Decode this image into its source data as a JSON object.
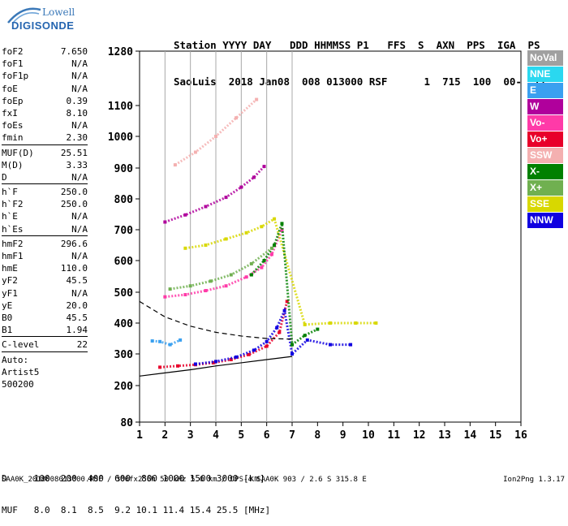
{
  "brand": {
    "line1": "Lowell",
    "line2": "DIGISONDE"
  },
  "header": {
    "line1": "Station YYYY DAY   DDD HHMMSS P1   FFS  S  AXN  PPS  IGA  PS",
    "line2": "SaoLuis  2018 Jan08  008 013000 RSF      1  715  100  00-  11"
  },
  "params": [
    {
      "label": "foF2",
      "value": "7.650"
    },
    {
      "label": "foF1",
      "value": "N/A"
    },
    {
      "label": "foF1p",
      "value": "N/A"
    },
    {
      "label": "foE",
      "value": "N/A"
    },
    {
      "label": "foEp",
      "value": "0.39"
    },
    {
      "label": "fxI",
      "value": "8.10"
    },
    {
      "label": "foEs",
      "value": "N/A"
    },
    {
      "label": "fmin",
      "value": "2.30"
    },
    {
      "sep": true
    },
    {
      "label": "MUF(D)",
      "value": "25.51"
    },
    {
      "label": "M(D)",
      "value": "3.33"
    },
    {
      "label": "D",
      "value": "N/A"
    },
    {
      "sep": true
    },
    {
      "label": "h`F",
      "value": "250.0"
    },
    {
      "label": "h`F2",
      "value": "250.0"
    },
    {
      "label": "h`E",
      "value": "N/A"
    },
    {
      "label": "h`Es",
      "value": "N/A"
    },
    {
      "sep": true
    },
    {
      "label": "hmF2",
      "value": "296.6"
    },
    {
      "label": "hmF1",
      "value": "N/A"
    },
    {
      "label": "hmE",
      "value": "110.0"
    },
    {
      "label": "yF2",
      "value": "45.5"
    },
    {
      "label": "yF1",
      "value": "N/A"
    },
    {
      "label": "yE",
      "value": "20.0"
    },
    {
      "label": "B0",
      "value": "45.5"
    },
    {
      "label": "B1",
      "value": "1.94"
    },
    {
      "sep": true
    },
    {
      "label": "C-level",
      "value": "22"
    },
    {
      "sep": true
    },
    {
      "label": "Auto:",
      "value": ""
    },
    {
      "label": "Artist5",
      "value": ""
    },
    {
      "label": "500200",
      "value": ""
    }
  ],
  "legend": [
    {
      "label": "NoVal",
      "color": "#a0a0a0"
    },
    {
      "label": "NNE",
      "color": "#2ad8f0"
    },
    {
      "label": "E",
      "color": "#3aa0f0"
    },
    {
      "label": "W",
      "color": "#b0009c"
    },
    {
      "label": "Vo-",
      "color": "#ff3aa8"
    },
    {
      "label": "Vo+",
      "color": "#e8002a"
    },
    {
      "label": "SSW",
      "color": "#f4b0b0"
    },
    {
      "label": "X-",
      "color": "#008000"
    },
    {
      "label": "X+",
      "color": "#70b050"
    },
    {
      "label": "SSE",
      "color": "#d8d800"
    },
    {
      "label": "NNW",
      "color": "#1000e0"
    }
  ],
  "chart_data": {
    "type": "scatter",
    "title": "",
    "xlabel": "",
    "ylabel": "",
    "xlim": [
      1,
      16
    ],
    "ylim": [
      80,
      1280
    ],
    "x_ticks": [
      1,
      2,
      3,
      4,
      5,
      6,
      7,
      8,
      9,
      10,
      11,
      12,
      13,
      14,
      15,
      16
    ],
    "y_ticks": [
      80,
      200,
      300,
      400,
      500,
      600,
      700,
      800,
      900,
      1000,
      1100,
      1280
    ],
    "grid_x_vertical": [
      2,
      3,
      4,
      5,
      6,
      7
    ],
    "series": [
      {
        "color": "#e8002a",
        "x": [
          1.8,
          2.5,
          3.2,
          3.9,
          4.6,
          5.3,
          6.0,
          6.5,
          6.8
        ],
        "y": [
          258,
          262,
          266,
          272,
          282,
          298,
          325,
          370,
          470
        ]
      },
      {
        "color": "#1000e0",
        "x": [
          3.2,
          4.0,
          4.8,
          5.5,
          6.0,
          6.4,
          6.7,
          7.0,
          7.6,
          8.5,
          9.3
        ],
        "y": [
          268,
          276,
          290,
          312,
          340,
          385,
          440,
          300,
          345,
          330,
          330
        ]
      },
      {
        "color": "#ff3aa8",
        "x": [
          2.0,
          2.8,
          3.6,
          4.4,
          5.2,
          5.8,
          6.2,
          6.6
        ],
        "y": [
          485,
          492,
          505,
          520,
          548,
          578,
          620,
          700
        ]
      },
      {
        "color": "#b0009c",
        "x": [
          2.0,
          2.8,
          3.6,
          4.4,
          5.0,
          5.5,
          5.9
        ],
        "y": [
          725,
          748,
          775,
          805,
          838,
          870,
          905
        ]
      },
      {
        "color": "#d8d800",
        "x": [
          2.8,
          3.6,
          4.4,
          5.2,
          5.8,
          6.3,
          7.5,
          8.5,
          9.5,
          10.3
        ],
        "y": [
          640,
          650,
          670,
          690,
          710,
          735,
          395,
          400,
          400,
          400
        ]
      },
      {
        "color": "#008000",
        "x": [
          5.4,
          5.9,
          6.3,
          6.6,
          7.0,
          7.5,
          8.0
        ],
        "y": [
          555,
          600,
          650,
          720,
          330,
          360,
          380
        ]
      },
      {
        "color": "#70b050",
        "x": [
          2.2,
          3.0,
          3.8,
          4.6,
          5.4,
          6.2
        ],
        "y": [
          510,
          520,
          535,
          555,
          590,
          640
        ]
      },
      {
        "color": "#3aa0f0",
        "x": [
          1.5,
          1.8,
          2.2,
          2.6
        ],
        "y": [
          342,
          340,
          330,
          345
        ]
      },
      {
        "color": "#f4b0b0",
        "x": [
          2.4,
          3.2,
          4.0,
          4.8,
          5.6
        ],
        "y": [
          910,
          950,
          1000,
          1060,
          1120
        ]
      }
    ],
    "trace_solid": {
      "x": [
        1.0,
        2.0,
        3.0,
        4.0,
        5.0,
        6.0,
        7.0
      ],
      "y": [
        230,
        240,
        250,
        262,
        272,
        282,
        292
      ]
    },
    "trace_dashed": {
      "x": [
        1.0,
        2.0,
        3.0,
        4.0,
        5.0,
        6.0,
        7.0
      ],
      "y": [
        470,
        420,
        390,
        370,
        358,
        350,
        348
      ]
    }
  },
  "footer": {
    "row_d": "D     100  200  400  600  800 1000 1500 3000 [km]",
    "row_muf": "MUF   8.0  8.1  8.5  9.2 10.1 11.4 15.4 25.5 [MHz]",
    "filename": "SAA0K_2018008013000.RSF / 300fx256h 50 kHz 5.0 km / DPS-4 SAA0K 903 / 2.6 S 315.8 E",
    "version": "Ion2Png 1.3.17"
  }
}
